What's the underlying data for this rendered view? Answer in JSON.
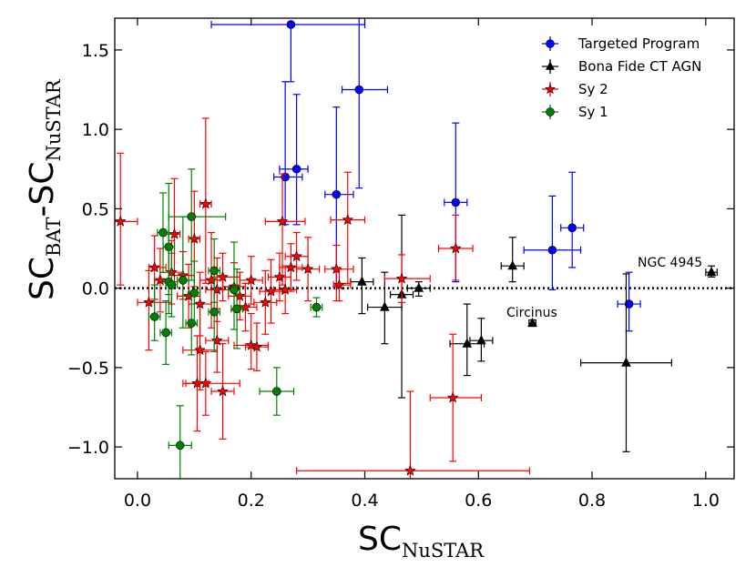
{
  "chart_data": {
    "type": "scatter",
    "title": "",
    "xlabel": "SC_NuSTAR",
    "ylabel": "SC_BAT - SC_NuSTAR",
    "x_label_parts": {
      "main": "SC",
      "sub": "NuSTAR"
    },
    "y_label_parts": {
      "main1": "SC",
      "sub1": "BAT",
      "dash": "-",
      "main2": "SC",
      "sub2": "NuSTAR"
    },
    "xlim": [
      -0.04,
      1.05
    ],
    "ylim": [
      -1.2,
      1.7
    ],
    "xticks": [
      0.0,
      0.2,
      0.4,
      0.6,
      0.8,
      1.0
    ],
    "xtick_labels": [
      "0.0",
      "0.2",
      "0.4",
      "0.6",
      "0.8",
      "1.0"
    ],
    "yticks": [
      -1.0,
      -0.5,
      0.0,
      0.5,
      1.0,
      1.5
    ],
    "ytick_labels": [
      "−1.0",
      "−0.5",
      "0.0",
      "0.5",
      "1.0",
      "1.5"
    ],
    "reference_line": {
      "y": 0,
      "style": "dotted"
    },
    "legend_position": "top-right",
    "series": [
      {
        "name": "Targeted Program",
        "marker": "circle",
        "color": "#0000ff",
        "points": [
          {
            "x": 0.27,
            "y": 1.66,
            "xerr": [
              0.14,
              0.13
            ],
            "yerr": [
              0.36,
              0.0
            ]
          },
          {
            "x": 0.39,
            "y": 1.25,
            "xerr": [
              0.03,
              0.05
            ],
            "yerr": [
              0.62,
              0.45
            ]
          },
          {
            "x": 0.28,
            "y": 0.75,
            "xerr": [
              0.03,
              0.02
            ],
            "yerr": [
              0.35,
              0.47
            ]
          },
          {
            "x": 0.26,
            "y": 0.7,
            "xerr": [
              0.02,
              0.03
            ],
            "yerr": [
              0.3,
              0.6
            ]
          },
          {
            "x": 0.35,
            "y": 0.59,
            "xerr": [
              0.02,
              0.03
            ],
            "yerr": [
              0.58,
              0.55
            ]
          },
          {
            "x": 0.56,
            "y": 0.54,
            "xerr": [
              0.02,
              0.02
            ],
            "yerr": [
              0.5,
              0.5
            ]
          },
          {
            "x": 0.73,
            "y": 0.24,
            "xerr": [
              0.05,
              0.05
            ],
            "yerr": [
              0.25,
              0.34
            ]
          },
          {
            "x": 0.765,
            "y": 0.38,
            "xerr": [
              0.02,
              0.02
            ],
            "yerr": [
              0.25,
              0.35
            ]
          },
          {
            "x": 0.865,
            "y": -0.1,
            "xerr": [
              0.02,
              0.02
            ],
            "yerr": [
              0.17,
              0.2
            ]
          }
        ]
      },
      {
        "name": "Bona Fide CT AGN",
        "marker": "triangle",
        "color": "#000000",
        "points": [
          {
            "x": 1.01,
            "y": 0.1,
            "xerr": [
              0.01,
              0.01
            ],
            "yerr": [
              0.03,
              0.04
            ]
          },
          {
            "x": 0.695,
            "y": -0.22,
            "xerr": [
              0.006,
              0.006
            ],
            "yerr": [
              0.02,
              0.02
            ]
          },
          {
            "x": 0.66,
            "y": 0.14,
            "xerr": [
              0.02,
              0.02
            ],
            "yerr": [
              0.1,
              0.18
            ]
          },
          {
            "x": 0.86,
            "y": -0.47,
            "xerr": [
              0.08,
              0.08
            ],
            "yerr": [
              0.56,
              0.56
            ]
          },
          {
            "x": 0.465,
            "y": -0.04,
            "xerr": [
              0.02,
              0.02
            ],
            "yerr": [
              0.65,
              0.5
            ]
          },
          {
            "x": 0.435,
            "y": -0.12,
            "xerr": [
              0.03,
              0.03
            ],
            "yerr": [
              0.23,
              0.22
            ]
          },
          {
            "x": 0.395,
            "y": 0.04,
            "xerr": [
              0.02,
              0.02
            ],
            "yerr": [
              0.2,
              0.15
            ]
          },
          {
            "x": 0.495,
            "y": 0.0,
            "xerr": [
              0.02,
              0.02
            ],
            "yerr": [
              0.05,
              0.04
            ]
          },
          {
            "x": 0.58,
            "y": -0.35,
            "xerr": [
              0.03,
              0.03
            ],
            "yerr": [
              0.2,
              0.25
            ]
          },
          {
            "x": 0.605,
            "y": -0.33,
            "xerr": [
              0.02,
              0.02
            ],
            "yerr": [
              0.13,
              0.14
            ]
          }
        ]
      },
      {
        "name": "Sy 2",
        "marker": "star",
        "color": "#ff0000",
        "points": [
          {
            "x": -0.03,
            "y": 0.42,
            "xerr": [
              0.01,
              0.03
            ],
            "yerr": [
              0.4,
              0.43
            ]
          },
          {
            "x": 0.48,
            "y": -1.15,
            "xerr": [
              0.2,
              0.21
            ],
            "yerr": [
              0.05,
              0.5
            ]
          },
          {
            "x": 0.555,
            "y": -0.69,
            "xerr": [
              0.04,
              0.05
            ],
            "yerr": [
              0.4,
              0.4
            ]
          },
          {
            "x": 0.56,
            "y": 0.25,
            "xerr": [
              0.03,
              0.03
            ],
            "yerr": [
              0.2,
              0.21
            ]
          },
          {
            "x": 0.465,
            "y": 0.06,
            "xerr": [
              0.03,
              0.05
            ],
            "yerr": [
              0.15,
              0.15
            ]
          },
          {
            "x": 0.37,
            "y": 0.43,
            "xerr": [
              0.03,
              0.03
            ],
            "yerr": [
              0.4,
              0.3
            ]
          },
          {
            "x": 0.35,
            "y": 0.12,
            "xerr": [
              0.02,
              0.03
            ],
            "yerr": [
              0.2,
              0.15
            ]
          },
          {
            "x": 0.12,
            "y": -0.6,
            "xerr": [
              0.04,
              0.06
            ],
            "yerr": [
              0.2,
              0.2
            ]
          },
          {
            "x": 0.15,
            "y": -0.65,
            "xerr": [
              0.02,
              0.02
            ],
            "yerr": [
              0.3,
              0.3
            ]
          },
          {
            "x": 0.12,
            "y": 0.53,
            "xerr": [
              0.01,
              0.01
            ],
            "yerr": [
              0.5,
              0.54
            ]
          },
          {
            "x": 0.255,
            "y": 0.42,
            "xerr": [
              0.03,
              0.04
            ],
            "yerr": [
              0.4,
              0.3
            ]
          },
          {
            "x": 0.1,
            "y": 0.31,
            "xerr": [
              0.01,
              0.01
            ],
            "yerr": [
              0.3,
              0.3
            ]
          },
          {
            "x": 0.065,
            "y": 0.34,
            "xerr": [
              0.01,
              0.01
            ],
            "yerr": [
              0.3,
              0.35
            ]
          },
          {
            "x": 0.02,
            "y": -0.09,
            "xerr": [
              0.02,
              0.04
            ],
            "yerr": [
              0.3,
              0.2
            ]
          },
          {
            "x": 0.03,
            "y": 0.13,
            "xerr": [
              0.01,
              0.02
            ],
            "yerr": [
              0.2,
              0.2
            ]
          },
          {
            "x": 0.105,
            "y": -0.6,
            "xerr": [
              0.02,
              0.02
            ],
            "yerr": [
              0.3,
              0.3
            ]
          },
          {
            "x": 0.2,
            "y": -0.36,
            "xerr": [
              0.03,
              0.03
            ],
            "yerr": [
              0.15,
              0.2
            ]
          },
          {
            "x": 0.21,
            "y": -0.37,
            "xerr": [
              0.02,
              0.02
            ],
            "yerr": [
              0.15,
              0.15
            ]
          },
          {
            "x": 0.11,
            "y": -0.39,
            "xerr": [
              0.03,
              0.03
            ],
            "yerr": [
              0.25,
              0.3
            ]
          },
          {
            "x": 0.14,
            "y": -0.33,
            "xerr": [
              0.02,
              0.02
            ],
            "yerr": [
              0.2,
              0.2
            ]
          },
          {
            "x": 0.225,
            "y": -0.09,
            "xerr": [
              0.02,
              0.02
            ],
            "yerr": [
              0.2,
              0.2
            ]
          },
          {
            "x": 0.235,
            "y": -0.02,
            "xerr": [
              0.02,
              0.02
            ],
            "yerr": [
              0.2,
              0.2
            ]
          },
          {
            "x": 0.2,
            "y": 0.05,
            "xerr": [
              0.02,
              0.02
            ],
            "yerr": [
              0.15,
              0.15
            ]
          },
          {
            "x": 0.17,
            "y": 0.01,
            "xerr": [
              0.02,
              0.02
            ],
            "yerr": [
              0.15,
              0.15
            ]
          },
          {
            "x": 0.15,
            "y": 0.07,
            "xerr": [
              0.02,
              0.03
            ],
            "yerr": [
              0.15,
              0.15
            ]
          },
          {
            "x": 0.13,
            "y": 0.05,
            "xerr": [
              0.02,
              0.02
            ],
            "yerr": [
              0.3,
              0.3
            ]
          },
          {
            "x": 0.08,
            "y": 0.08,
            "xerr": [
              0.02,
              0.02
            ],
            "yerr": [
              0.15,
              0.15
            ]
          },
          {
            "x": 0.06,
            "y": 0.1,
            "xerr": [
              0.02,
              0.02
            ],
            "yerr": [
              0.2,
              0.2
            ]
          },
          {
            "x": 0.04,
            "y": 0.05,
            "xerr": [
              0.01,
              0.02
            ],
            "yerr": [
              0.2,
              0.2
            ]
          },
          {
            "x": 0.09,
            "y": -0.05,
            "xerr": [
              0.02,
              0.02
            ],
            "yerr": [
              0.2,
              0.2
            ]
          },
          {
            "x": 0.11,
            "y": -0.1,
            "xerr": [
              0.02,
              0.02
            ],
            "yerr": [
              0.2,
              0.2
            ]
          },
          {
            "x": 0.25,
            "y": 0.07,
            "xerr": [
              0.02,
              0.02
            ],
            "yerr": [
              0.15,
              0.15
            ]
          },
          {
            "x": 0.27,
            "y": 0.13,
            "xerr": [
              0.02,
              0.02
            ],
            "yerr": [
              0.15,
              0.15
            ]
          },
          {
            "x": 0.28,
            "y": 0.2,
            "xerr": [
              0.02,
              0.02
            ],
            "yerr": [
              0.15,
              0.15
            ]
          },
          {
            "x": 0.3,
            "y": 0.12,
            "xerr": [
              0.02,
              0.02
            ],
            "yerr": [
              0.2,
              0.2
            ]
          },
          {
            "x": 0.355,
            "y": 0.02,
            "xerr": [
              0.01,
              0.02
            ],
            "yerr": [
              0.1,
              0.1
            ]
          },
          {
            "x": 0.26,
            "y": -0.01,
            "xerr": [
              0.02,
              0.02
            ],
            "yerr": [
              0.15,
              0.15
            ]
          },
          {
            "x": 0.18,
            "y": -0.05,
            "xerr": [
              0.02,
              0.02
            ],
            "yerr": [
              0.15,
              0.15
            ]
          },
          {
            "x": 0.14,
            "y": -0.01,
            "xerr": [
              0.02,
              0.02
            ],
            "yerr": [
              0.2,
              0.2
            ]
          },
          {
            "x": 0.19,
            "y": -0.12,
            "xerr": [
              0.02,
              0.02
            ],
            "yerr": [
              0.15,
              0.15
            ]
          }
        ]
      },
      {
        "name": "Sy 1",
        "marker": "circle",
        "color": "#008000",
        "points": [
          {
            "x": 0.075,
            "y": -0.99,
            "xerr": [
              0.02,
              0.02
            ],
            "yerr": [
              0.25,
              0.25
            ]
          },
          {
            "x": 0.245,
            "y": -0.65,
            "xerr": [
              0.03,
              0.03
            ],
            "yerr": [
              0.15,
              0.15
            ]
          },
          {
            "x": 0.315,
            "y": -0.12,
            "xerr": [
              0.01,
              0.01
            ],
            "yerr": [
              0.06,
              0.06
            ]
          },
          {
            "x": 0.095,
            "y": 0.45,
            "xerr": [
              0.04,
              0.06
            ],
            "yerr": [
              0.4,
              0.3
            ]
          },
          {
            "x": 0.045,
            "y": 0.35,
            "xerr": [
              0.01,
              0.01
            ],
            "yerr": [
              0.25,
              0.25
            ]
          },
          {
            "x": 0.055,
            "y": 0.26,
            "xerr": [
              0.01,
              0.01
            ],
            "yerr": [
              0.3,
              0.4
            ]
          },
          {
            "x": 0.055,
            "y": 0.04,
            "xerr": [
              0.01,
              0.01
            ],
            "yerr": [
              0.2,
              0.3
            ]
          },
          {
            "x": 0.05,
            "y": -0.28,
            "xerr": [
              0.01,
              0.01
            ],
            "yerr": [
              0.2,
              0.2
            ]
          },
          {
            "x": 0.03,
            "y": -0.18,
            "xerr": [
              0.01,
              0.01
            ],
            "yerr": [
              0.15,
              0.2
            ]
          },
          {
            "x": 0.095,
            "y": -0.22,
            "xerr": [
              0.01,
              0.01
            ],
            "yerr": [
              0.2,
              0.2
            ]
          },
          {
            "x": 0.1,
            "y": -0.03,
            "xerr": [
              0.01,
              0.01
            ],
            "yerr": [
              0.2,
              0.2
            ]
          },
          {
            "x": 0.135,
            "y": 0.11,
            "xerr": [
              0.01,
              0.01
            ],
            "yerr": [
              0.2,
              0.2
            ]
          },
          {
            "x": 0.135,
            "y": -0.15,
            "xerr": [
              0.01,
              0.01
            ],
            "yerr": [
              0.25,
              0.25
            ]
          },
          {
            "x": 0.17,
            "y": -0.01,
            "xerr": [
              0.01,
              0.01
            ],
            "yerr": [
              0.25,
              0.3
            ]
          },
          {
            "x": 0.175,
            "y": -0.13,
            "xerr": [
              0.01,
              0.01
            ],
            "yerr": [
              0.25,
              0.25
            ]
          },
          {
            "x": 0.08,
            "y": 0.05,
            "xerr": [
              0.01,
              0.01
            ],
            "yerr": [
              0.3,
              0.4
            ]
          },
          {
            "x": 0.06,
            "y": 0.02,
            "xerr": [
              0.01,
              0.01
            ],
            "yerr": [
              0.2,
              0.2
            ]
          }
        ]
      }
    ],
    "annotations": [
      {
        "text": "NGC 4945",
        "x": 1.01,
        "y": 0.1
      },
      {
        "text": "Circinus",
        "x": 0.695,
        "y": -0.22
      }
    ]
  }
}
